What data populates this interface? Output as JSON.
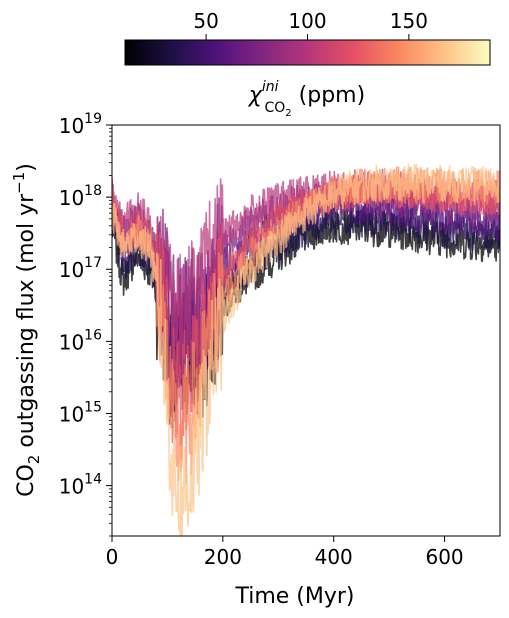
{
  "chart_data": {
    "type": "line",
    "title": "",
    "xlabel": "Time (Myr)",
    "ylabel": {
      "pre": "CO",
      "sub": "2",
      "mid": " outgassing flux (mol yr",
      "sup": "−1",
      "post": ")"
    },
    "xlim": [
      0,
      700
    ],
    "ylim": [
      20000000000000.0,
      1e+19
    ],
    "yscale": "log",
    "grid": false,
    "x_ticks": [
      {
        "value": 0,
        "label": "0"
      },
      {
        "value": 200,
        "label": "200"
      },
      {
        "value": 400,
        "label": "400"
      },
      {
        "value": 600,
        "label": "600"
      }
    ],
    "y_ticks": [
      {
        "value": 100000000000000.0,
        "base": "10",
        "exp": "14"
      },
      {
        "value": 1000000000000000.0,
        "base": "10",
        "exp": "15"
      },
      {
        "value": 1e+16,
        "base": "10",
        "exp": "16"
      },
      {
        "value": 1e+17,
        "base": "10",
        "exp": "17"
      },
      {
        "value": 1e+18,
        "base": "10",
        "exp": "18"
      },
      {
        "value": 1e+19,
        "base": "10",
        "exp": "19"
      }
    ],
    "colorbar": {
      "label": {
        "symbol": "χ",
        "sup": "ini",
        "sub": "CO",
        "subsub": "2",
        "unit": " (ppm)"
      },
      "colormap": "magma",
      "vmin": 10,
      "vmax": 190,
      "ticks": [
        {
          "value": 50,
          "label": "50"
        },
        {
          "value": 100,
          "label": "100"
        },
        {
          "value": 150,
          "label": "150"
        }
      ],
      "stops": [
        "#000004",
        "#1c1044",
        "#4f127b",
        "#812581",
        "#b5367a",
        "#e55064",
        "#fb8761",
        "#fec287",
        "#fcfdbf"
      ]
    },
    "series": [
      {
        "color": "#000004",
        "opacity": 0.75,
        "t": [
          0,
          20,
          45,
          70,
          90,
          110,
          125,
          140,
          160,
          180,
          200,
          250,
          300,
          350,
          400,
          450,
          500,
          550,
          600,
          650,
          700
        ],
        "flux": [
          4e+17,
          7e+16,
          1.6e+17,
          9e+16,
          2.5e+16,
          3000000000000000.0,
          4000000000000000.0,
          8000000000000000.0,
          4000000000000000.0,
          1.5e+16,
          3.5e+16,
          8e+16,
          1.6e+17,
          3e+17,
          4e+17,
          3.8e+17,
          3.5e+17,
          3e+17,
          2.6e+17,
          2.3e+17,
          2.2e+17
        ]
      },
      {
        "color": "#1c1044",
        "opacity": 0.75,
        "t": [
          0,
          20,
          45,
          70,
          90,
          110,
          125,
          140,
          160,
          180,
          200,
          250,
          300,
          350,
          400,
          450,
          500,
          550,
          600,
          650,
          700
        ],
        "flux": [
          5e+17,
          1e+17,
          2e+17,
          1.2e+17,
          3.5e+16,
          5000000000000000.0,
          6000000000000000.0,
          1e+16,
          6000000000000000.0,
          2e+16,
          5e+16,
          1.1e+17,
          2.2e+17,
          3.8e+17,
          5.2e+17,
          5e+17,
          4.6e+17,
          4e+17,
          3.5e+17,
          3.1e+17,
          2.9e+17
        ]
      },
      {
        "color": "#4f127b",
        "opacity": 0.75,
        "t": [
          0,
          20,
          45,
          70,
          90,
          110,
          125,
          140,
          160,
          180,
          200,
          250,
          300,
          350,
          400,
          450,
          500,
          550,
          600,
          650,
          700
        ],
        "flux": [
          7e+17,
          2e+17,
          3e+17,
          1.8e+17,
          6e+16,
          1e+16,
          1.2e+16,
          2e+16,
          1.5e+16,
          5e+16,
          1.1e+17,
          2.4e+17,
          4.2e+17,
          6.5e+17,
          8e+17,
          7.5e+17,
          6.8e+17,
          6e+17,
          5.2e+17,
          4.5e+17,
          4.2e+17
        ]
      },
      {
        "color": "#812581",
        "opacity": 0.75,
        "t": [
          0,
          20,
          45,
          70,
          90,
          110,
          125,
          140,
          160,
          180,
          200,
          250,
          300,
          350,
          400,
          450,
          500,
          550,
          600,
          650,
          700
        ],
        "flux": [
          1e+18,
          3e+17,
          5e+17,
          2.8e+17,
          1e+17,
          2e+16,
          1.8e+16,
          3e+16,
          3e+16,
          9e+16,
          2e+17,
          4.2e+17,
          7e+17,
          9e+17,
          1e+18,
          1e+18,
          9.5e+17,
          8.5e+17,
          7.5e+17,
          7e+17,
          6.5e+17
        ]
      },
      {
        "color": "#b5367a",
        "opacity": 0.7,
        "t": [
          0,
          20,
          45,
          70,
          90,
          110,
          125,
          140,
          160,
          180,
          200,
          250,
          300,
          350,
          400,
          450,
          500,
          550,
          600,
          650,
          700
        ],
        "flux": [
          1.5e+18,
          4e+17,
          7e+17,
          4e+17,
          1.3e+17,
          2.5e+16,
          2.2e+16,
          4e+16,
          5e+16,
          1.4e+17,
          3e+17,
          6e+17,
          9e+17,
          1.2e+18,
          1.3e+18,
          1.4e+18,
          1.35e+18,
          1.2e+18,
          1.1e+18,
          1e+18,
          9.5e+17
        ]
      },
      {
        "color": "#e55064",
        "opacity": 0.7,
        "t": [
          0,
          20,
          45,
          70,
          90,
          110,
          125,
          140,
          160,
          180,
          200,
          250,
          300,
          350,
          400,
          450,
          500,
          550,
          600,
          650,
          700
        ],
        "flux": [
          1.2e+18,
          2.5e+17,
          4e+17,
          2.5e+17,
          4e+16,
          2000000000000000.0,
          1500000000000000.0,
          3000000000000000.0,
          8000000000000000.0,
          3e+16,
          8e+16,
          2.5e+17,
          5e+17,
          8e+17,
          1.1e+18,
          1.3e+18,
          1.3e+18,
          1.2e+18,
          1.1e+18,
          1e+18,
          9e+17
        ]
      },
      {
        "color": "#fb8761",
        "opacity": 0.7,
        "t": [
          0,
          20,
          45,
          70,
          90,
          110,
          125,
          140,
          160,
          180,
          200,
          250,
          300,
          350,
          400,
          450,
          500,
          550,
          600,
          650,
          700
        ],
        "flux": [
          8e+17,
          2.2e+17,
          3.5e+17,
          2.2e+17,
          2.5e+16,
          600000000000000.0,
          500000000000000.0,
          900000000000000.0,
          3000000000000000.0,
          1.2e+16,
          4e+16,
          1.5e+17,
          3.5e+17,
          7e+17,
          1.1e+18,
          1.4e+18,
          1.5e+18,
          1.45e+18,
          1.4e+18,
          1.35e+18,
          1.3e+18
        ]
      },
      {
        "color": "#fec287",
        "opacity": 0.7,
        "t": [
          0,
          20,
          45,
          70,
          90,
          110,
          125,
          140,
          160,
          180,
          200,
          250,
          300,
          350,
          400,
          450,
          500,
          550,
          600,
          650,
          700
        ],
        "flux": [
          6e+17,
          2e+17,
          3e+17,
          1.8e+17,
          1.5e+16,
          150000000000000.0,
          70000000000000.0,
          120000000000000.0,
          600000000000000.0,
          5000000000000000.0,
          2e+16,
          1e+17,
          2.8e+17,
          6e+17,
          1.1e+18,
          1.5e+18,
          1.6e+18,
          1.6e+18,
          1.55e+18,
          1.5e+18,
          1.5e+18
        ]
      }
    ]
  }
}
